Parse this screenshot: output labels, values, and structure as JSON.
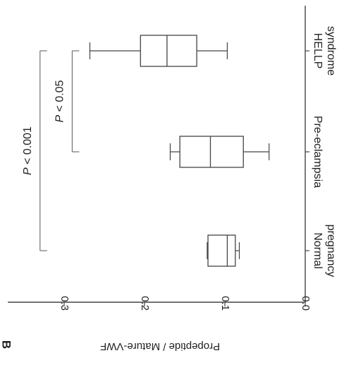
{
  "chart_data": {
    "type": "box",
    "panel_label": "B",
    "ylabel": "Propeptide / Mature-VWF",
    "ylim": [
      0.0,
      0.37
    ],
    "yticks": [
      0.0,
      0.1,
      0.2,
      0.3
    ],
    "ytick_labels": [
      "0.0",
      "0.1",
      "0.2",
      "0.3"
    ],
    "categories": [
      {
        "lines": [
          "Normal",
          "pregnancy"
        ]
      },
      {
        "lines": [
          "Pre-eclampsia"
        ]
      },
      {
        "lines": [
          "HELLP",
          "syndrome"
        ]
      }
    ],
    "boxes": [
      {
        "whisker_low": 0.082,
        "q1": 0.087,
        "median": 0.097,
        "q3": 0.121,
        "whisker_high": 0.122
      },
      {
        "whisker_low": 0.045,
        "q1": 0.077,
        "median": 0.118,
        "q3": 0.156,
        "whisker_high": 0.168
      },
      {
        "whisker_low": 0.097,
        "q1": 0.135,
        "median": 0.172,
        "q3": 0.205,
        "whisker_high": 0.268
      }
    ],
    "annotations": [
      {
        "text": "P < 0.001",
        "from_category": 0,
        "to_category": 2,
        "y": 0.33
      },
      {
        "text": "P < 0.05",
        "from_category": 1,
        "to_category": 2,
        "y": 0.29
      }
    ]
  }
}
